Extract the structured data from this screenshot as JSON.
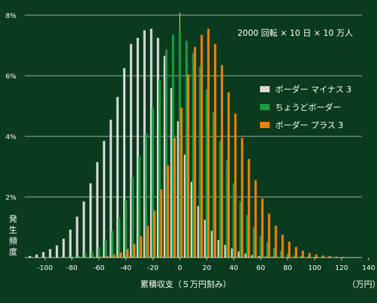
{
  "colors": {
    "background": "#0b3b1e",
    "gridline": "#ffffff",
    "zero_line": "#e8d21a"
  },
  "chart_data": {
    "type": "bar",
    "annotation": "2000 回転 × 10 日 × 10 万人",
    "xlabel": "累積収支（５万円刻み）",
    "xunit": "（万円）",
    "ylabel": "発生頻度",
    "grid": true,
    "legend_position": "top-right",
    "xlim": [
      -115,
      135
    ],
    "ylim": [
      0,
      8
    ],
    "x_ticks": [
      -100,
      -80,
      -60,
      -40,
      -20,
      0,
      20,
      40,
      60,
      80,
      100,
      120,
      140
    ],
    "x_tick_labels": [
      "-100",
      "-80",
      "-60",
      "-40",
      "-20",
      "0",
      "20",
      "40",
      "60",
      "80",
      "100",
      "120",
      "140"
    ],
    "y_ticks": [
      2,
      4,
      6,
      8
    ],
    "y_tick_labels": [
      "2%",
      "4%",
      "6%",
      "8%"
    ],
    "x": [
      -110,
      -105,
      -100,
      -95,
      -90,
      -85,
      -80,
      -75,
      -70,
      -65,
      -60,
      -55,
      -50,
      -45,
      -40,
      -35,
      -30,
      -25,
      -20,
      -15,
      -10,
      -5,
      0,
      5,
      10,
      15,
      20,
      25,
      30,
      35,
      40,
      45,
      50,
      55,
      60,
      65,
      70,
      75,
      80,
      85,
      90,
      95,
      100,
      105,
      110,
      115,
      120,
      125,
      130
    ],
    "series": [
      {
        "name": "ボーダー マイナス 3",
        "color": "#d9d9d9",
        "values": [
          0.05,
          0.1,
          0.18,
          0.28,
          0.4,
          0.62,
          0.92,
          1.35,
          1.85,
          2.45,
          3.15,
          3.85,
          4.55,
          5.3,
          6.25,
          7.05,
          7.25,
          7.5,
          7.55,
          7.25,
          6.65,
          5.6,
          4.5,
          3.4,
          2.5,
          1.7,
          1.25,
          0.88,
          0.58,
          0.42,
          0.3,
          0.2,
          0.13,
          0.08,
          0.05,
          0.03,
          0.02,
          0.01,
          0.01,
          0,
          0,
          0,
          0,
          0,
          0,
          0,
          0,
          0,
          0
        ]
      },
      {
        "name": "ちょうどボーダー",
        "color": "#1a9b3c",
        "values": [
          0,
          0,
          0,
          0,
          0.01,
          0.02,
          0.04,
          0.07,
          0.12,
          0.2,
          0.35,
          0.58,
          0.88,
          1.3,
          1.9,
          2.65,
          3.35,
          4.1,
          4.95,
          5.85,
          6.85,
          7.35,
          7.5,
          7.15,
          6.75,
          6.3,
          5.55,
          4.8,
          3.85,
          3.2,
          2.45,
          1.85,
          1.4,
          1.0,
          0.7,
          0.5,
          0.32,
          0.2,
          0.13,
          0.08,
          0.05,
          0.03,
          0.02,
          0.01,
          0.01,
          0,
          0,
          0,
          0
        ]
      },
      {
        "name": "ボーダー プラス 3",
        "color": "#f07f0a",
        "values": [
          0,
          0,
          0,
          0,
          0,
          0,
          0,
          0,
          0.01,
          0.02,
          0.03,
          0.06,
          0.1,
          0.17,
          0.28,
          0.45,
          0.7,
          1.05,
          1.55,
          2.25,
          3.05,
          3.95,
          4.95,
          6.05,
          6.95,
          7.35,
          7.55,
          7.05,
          6.35,
          5.45,
          4.75,
          3.95,
          3.25,
          2.55,
          1.95,
          1.45,
          1.05,
          0.75,
          0.52,
          0.35,
          0.23,
          0.15,
          0.1,
          0.07,
          0.05,
          0.03,
          0.02,
          0.01,
          0.01
        ]
      }
    ]
  }
}
